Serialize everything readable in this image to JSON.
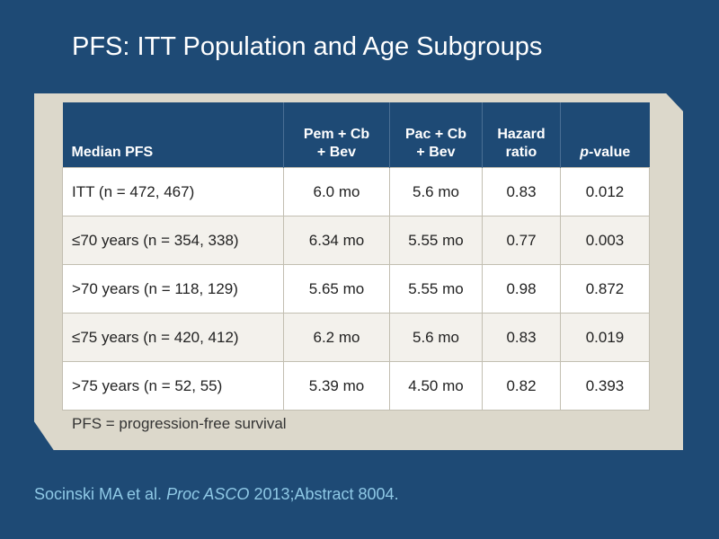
{
  "slide": {
    "title": "PFS: ITT Population and Age Subgroups"
  },
  "table": {
    "headers": {
      "col0": "Median PFS",
      "col1_line1": "Pem + Cb",
      "col1_line2": "+ Bev",
      "col2_line1": "Pac + Cb",
      "col2_line2": "+ Bev",
      "col3_line1": "Hazard",
      "col3_line2": "ratio",
      "col4_italic": "p",
      "col4_rest": "-value"
    },
    "rows": [
      {
        "label": "ITT (n = 472, 467)",
        "pem": "6.0 mo",
        "pac": "5.6 mo",
        "hr": "0.83",
        "p": "0.012"
      },
      {
        "label": "≤70 years (n = 354, 338)",
        "pem": "6.34 mo",
        "pac": "5.55 mo",
        "hr": "0.77",
        "p": "0.003"
      },
      {
        "label": ">70 years (n = 118, 129)",
        "pem": "5.65 mo",
        "pac": "5.55 mo",
        "hr": "0.98",
        "p": "0.872"
      },
      {
        "label": "≤75 years (n = 420, 412)",
        "pem": "6.2 mo",
        "pac": "5.6 mo",
        "hr": "0.83",
        "p": "0.019"
      },
      {
        "label": ">75 years (n = 52, 55)",
        "pem": "5.39 mo",
        "pac": "4.50 mo",
        "hr": "0.82",
        "p": "0.393"
      }
    ]
  },
  "footnote": "PFS = progression-free survival",
  "citation": {
    "authors": "Socinski MA et al.",
    "journal": "Proc ASCO",
    "rest": "2013;Abstract 8004."
  },
  "colors": {
    "background": "#1e4a75",
    "panel": "#dcd8cb",
    "citation": "#8fc9e6"
  }
}
